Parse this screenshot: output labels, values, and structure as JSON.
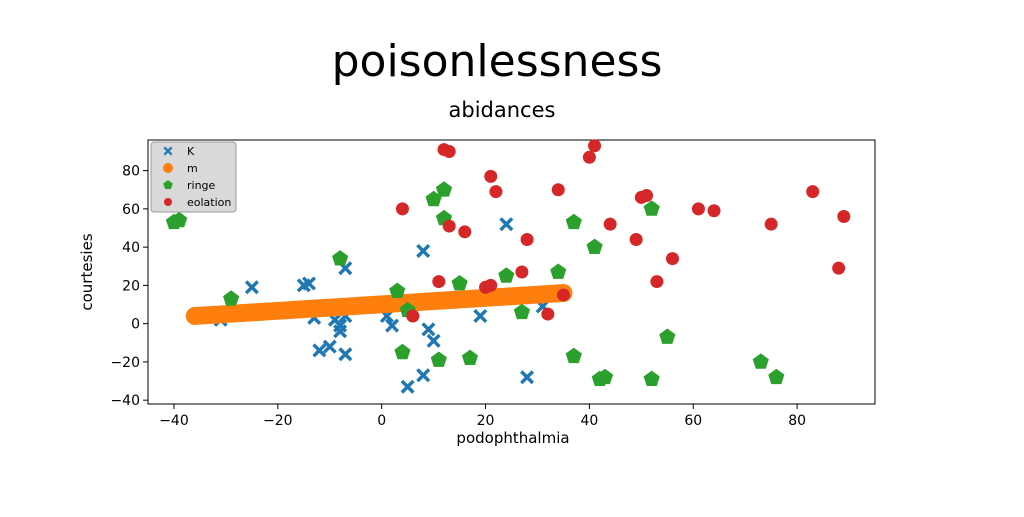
{
  "chart_data": {
    "type": "scatter",
    "title": "poisonlessness",
    "subtitle": "abidances",
    "xlabel": "podophthalmia",
    "ylabel": "courtesies",
    "xlim": [
      -45,
      95
    ],
    "ylim": [
      -42,
      96
    ],
    "xticks": [
      -40,
      -20,
      0,
      20,
      40,
      60,
      80
    ],
    "yticks": [
      -40,
      -20,
      0,
      20,
      40,
      60,
      80
    ],
    "tick_labels": {
      "x": [
        "−40",
        "−20",
        "0",
        "20",
        "40",
        "60",
        "80"
      ],
      "y": [
        "−40",
        "−20",
        "0",
        "20",
        "40",
        "60",
        "80"
      ]
    },
    "legend_position": "top-left",
    "grid": false,
    "series": [
      {
        "name": "K",
        "marker": "X",
        "color": "#1f77b4",
        "points": [
          [
            -31,
            2
          ],
          [
            -25,
            19
          ],
          [
            -15,
            20
          ],
          [
            -14,
            21
          ],
          [
            -13,
            3
          ],
          [
            -12,
            -14
          ],
          [
            -10,
            -12
          ],
          [
            -9,
            2
          ],
          [
            -8,
            -1
          ],
          [
            -8,
            -4
          ],
          [
            -7,
            4
          ],
          [
            -7,
            -16
          ],
          [
            -7,
            29
          ],
          [
            1,
            4
          ],
          [
            2,
            -1
          ],
          [
            5,
            -33
          ],
          [
            8,
            38
          ],
          [
            8,
            -27
          ],
          [
            9,
            -3
          ],
          [
            10,
            -9
          ],
          [
            19,
            4
          ],
          [
            24,
            52
          ],
          [
            28,
            -28
          ],
          [
            31,
            9
          ]
        ]
      },
      {
        "name": "m",
        "marker": "o",
        "color": "#ff7f0e",
        "line_from": [
          -36,
          4
        ],
        "line_to": [
          35,
          16
        ],
        "n_points": 90
      },
      {
        "name": "ringe",
        "marker": "p",
        "color": "#2ca02c",
        "points": [
          [
            -40,
            53
          ],
          [
            -39,
            54
          ],
          [
            -29,
            13
          ],
          [
            -8,
            34
          ],
          [
            3,
            17
          ],
          [
            4,
            -15
          ],
          [
            5,
            7
          ],
          [
            10,
            65
          ],
          [
            11,
            -19
          ],
          [
            12,
            70
          ],
          [
            12,
            55
          ],
          [
            15,
            21
          ],
          [
            17,
            -18
          ],
          [
            24,
            25
          ],
          [
            27,
            6
          ],
          [
            34,
            27
          ],
          [
            37,
            -17
          ],
          [
            37,
            53
          ],
          [
            41,
            40
          ],
          [
            42,
            -29
          ],
          [
            43,
            -28
          ],
          [
            52,
            60
          ],
          [
            52,
            -29
          ],
          [
            55,
            -7
          ],
          [
            73,
            -20
          ],
          [
            76,
            -28
          ]
        ]
      },
      {
        "name": "eolation",
        "marker": "o",
        "color": "#d62728",
        "points": [
          [
            4,
            60
          ],
          [
            6,
            4
          ],
          [
            11,
            22
          ],
          [
            12,
            91
          ],
          [
            13,
            90
          ],
          [
            13,
            51
          ],
          [
            16,
            48
          ],
          [
            20,
            19
          ],
          [
            21,
            77
          ],
          [
            21,
            20
          ],
          [
            22,
            69
          ],
          [
            27,
            27
          ],
          [
            28,
            44
          ],
          [
            32,
            5
          ],
          [
            34,
            70
          ],
          [
            35,
            15
          ],
          [
            40,
            87
          ],
          [
            41,
            93
          ],
          [
            44,
            52
          ],
          [
            49,
            44
          ],
          [
            50,
            66
          ],
          [
            51,
            67
          ],
          [
            53,
            22
          ],
          [
            56,
            34
          ],
          [
            61,
            60
          ],
          [
            64,
            59
          ],
          [
            75,
            52
          ],
          [
            83,
            69
          ],
          [
            88,
            29
          ],
          [
            89,
            56
          ]
        ]
      }
    ]
  }
}
